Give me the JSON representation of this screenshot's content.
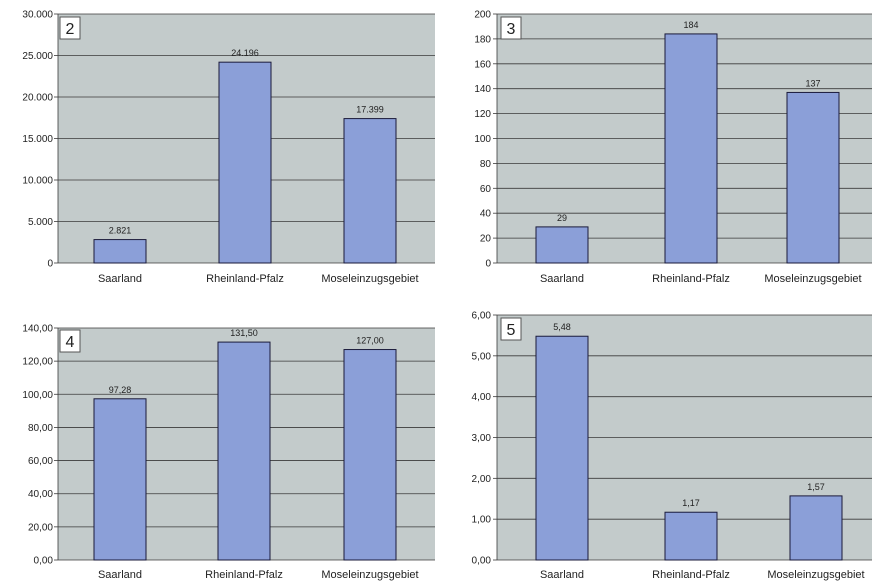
{
  "chart_data": [
    {
      "type": "bar",
      "panel_label": "2",
      "categories": [
        "Saarland",
        "Rheinland-Pfalz",
        "Moseleinzugsgebiet"
      ],
      "values": [
        2821,
        24196,
        17399
      ],
      "value_labels": [
        "2.821",
        "24.196",
        "17.399"
      ],
      "ylim": [
        0,
        30000
      ],
      "yticks": [
        0,
        5000,
        10000,
        15000,
        20000,
        25000,
        30000
      ],
      "ytick_labels": [
        "0",
        "5.000",
        "10.000",
        "15.000",
        "20.000",
        "25.000",
        "30.000"
      ],
      "grid": true
    },
    {
      "type": "bar",
      "panel_label": "3",
      "categories": [
        "Saarland",
        "Rheinland-Pfalz",
        "Moseleinzugsgebiet"
      ],
      "values": [
        29,
        184,
        137
      ],
      "value_labels": [
        "29",
        "184",
        "137"
      ],
      "ylim": [
        0,
        200
      ],
      "yticks": [
        0,
        20,
        40,
        60,
        80,
        100,
        120,
        140,
        160,
        180,
        200
      ],
      "ytick_labels": [
        "0",
        "20",
        "40",
        "60",
        "80",
        "100",
        "120",
        "140",
        "160",
        "180",
        "200"
      ],
      "grid": true
    },
    {
      "type": "bar",
      "panel_label": "4",
      "categories": [
        "Saarland",
        "Rheinland-Pfalz",
        "Moseleinzugsgebiet"
      ],
      "values": [
        97.28,
        131.5,
        127.0
      ],
      "value_labels": [
        "97,28",
        "131,50",
        "127,00"
      ],
      "ylim": [
        0,
        140
      ],
      "yticks": [
        0,
        20,
        40,
        60,
        80,
        100,
        120,
        140
      ],
      "ytick_labels": [
        "0,00",
        "20,00",
        "40,00",
        "60,00",
        "80,00",
        "100,00",
        "120,00",
        "140,00"
      ],
      "grid": true
    },
    {
      "type": "bar",
      "panel_label": "5",
      "categories": [
        "Saarland",
        "Rheinland-Pfalz",
        "Moseleinzugsgebiet"
      ],
      "values": [
        5.48,
        1.17,
        1.57
      ],
      "value_labels": [
        "5,48",
        "1,17",
        "1,57"
      ],
      "ylim": [
        0,
        6
      ],
      "yticks": [
        0,
        1,
        2,
        3,
        4,
        5,
        6
      ],
      "ytick_labels": [
        "0,00",
        "1,00",
        "2,00",
        "3,00",
        "4,00",
        "5,00",
        "6,00"
      ],
      "grid": true
    }
  ],
  "colors": {
    "plot_background": "#c3cbcb",
    "bar_fill": "#8b9fd8",
    "bar_stroke": "#1a1a3a",
    "gridline": "#3a3a3a",
    "label_box": "#ffffff"
  }
}
